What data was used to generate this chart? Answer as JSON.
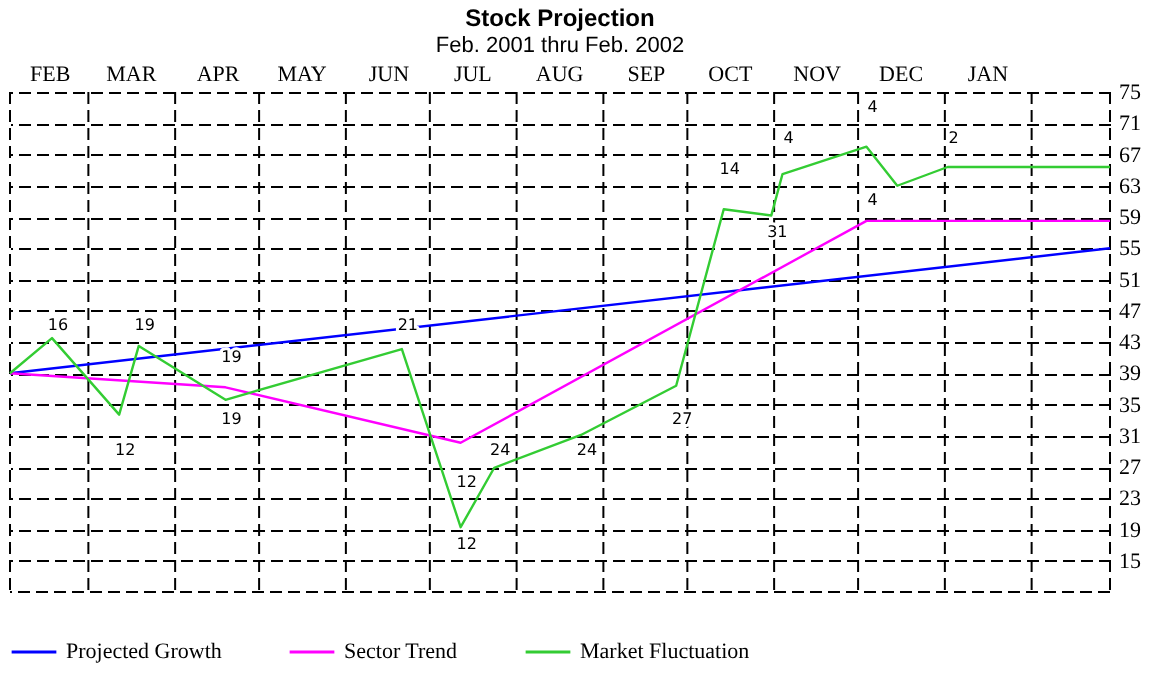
{
  "chart_data": {
    "type": "line",
    "title": "Stock Projection",
    "subtitle": "Feb. 2001 thru Feb. 2002",
    "xlim": [
      "2001-02-01",
      "2002-03-01"
    ],
    "xticks": [
      {
        "value": "2001-02-01",
        "label": null
      },
      {
        "value": "2001-02-15",
        "label": "FEB"
      },
      {
        "value": "2001-03-01",
        "label": null
      },
      {
        "value": "2001-03-16",
        "label": "MAR"
      },
      {
        "value": "2001-04-01",
        "label": null
      },
      {
        "value": "2001-04-16",
        "label": "APR"
      },
      {
        "value": "2001-05-01",
        "label": null
      },
      {
        "value": "2001-05-16",
        "label": "MAY"
      },
      {
        "value": "2001-06-01",
        "label": null
      },
      {
        "value": "2001-06-16",
        "label": "JUN"
      },
      {
        "value": "2001-07-01",
        "label": null
      },
      {
        "value": "2001-07-16",
        "label": "JUL"
      },
      {
        "value": "2001-08-01",
        "label": null
      },
      {
        "value": "2001-08-16",
        "label": "AUG"
      },
      {
        "value": "2001-09-01",
        "label": null
      },
      {
        "value": "2001-09-16",
        "label": "SEP"
      },
      {
        "value": "2001-10-01",
        "label": null
      },
      {
        "value": "2001-10-16",
        "label": "OCT"
      },
      {
        "value": "2001-11-01",
        "label": null
      },
      {
        "value": "2001-11-16",
        "label": "NOV"
      },
      {
        "value": "2001-12-01",
        "label": null
      },
      {
        "value": "2001-12-16",
        "label": "DEC"
      },
      {
        "value": "2002-01-01",
        "label": null
      },
      {
        "value": "2002-01-16",
        "label": "JAN"
      },
      {
        "value": "2002-02-01",
        "label": null
      },
      {
        "value": "2002-03-01",
        "label": null
      }
    ],
    "ylim": [
      11,
      75
    ],
    "yticks": [
      15,
      19,
      23,
      27,
      31,
      35,
      39,
      43,
      47,
      51,
      55,
      59,
      63,
      67,
      71,
      75
    ],
    "grid": true,
    "legend": "bottom",
    "line_style": "solid",
    "marker": "none",
    "series": [
      {
        "name": "Projected Growth",
        "color": "#0000ff",
        "x": [
          "2001-02-01",
          "2002-03-01"
        ],
        "values": [
          39,
          55
        ]
      },
      {
        "name": "Sector Trend",
        "color": "#ff00ff",
        "x": [
          "2001-02-01",
          "2001-04-19",
          "2001-07-12",
          "2001-12-04",
          "2002-03-01"
        ],
        "values": [
          39,
          37.2,
          30.1,
          58.5,
          58.5
        ]
      },
      {
        "name": "Market Fluctuation",
        "color": "#33cc33",
        "x": [
          "2001-02-01",
          "2001-02-16",
          "2001-03-12",
          "2001-03-19",
          "2001-04-19",
          "2001-06-21",
          "2001-07-12",
          "2001-07-24",
          "2001-08-24",
          "2001-09-27",
          "2001-10-14",
          "2001-10-31",
          "2001-11-04",
          "2001-12-04",
          "2001-12-15",
          "2002-01-02",
          "2002-03-01"
        ],
        "values": [
          39,
          43.5,
          33.7,
          42.5,
          35.6,
          42.1,
          19.3,
          26.9,
          31.1,
          37.4,
          60,
          59.2,
          64.5,
          68,
          63,
          65.4,
          65.4
        ]
      }
    ],
    "annotations": [
      {
        "text": "19",
        "x": "2001-04-19",
        "y": 37.2
      },
      {
        "text": "12",
        "x": "2001-07-12",
        "y": 30.1
      },
      {
        "text": "4",
        "x": "2001-12-04",
        "y": 58.5
      },
      {
        "text": "16",
        "x": "2001-02-16",
        "y": 43.5
      },
      {
        "text": "12",
        "x": "2001-03-12",
        "y": 33.7
      },
      {
        "text": "19",
        "x": "2001-03-19",
        "y": 42.5
      },
      {
        "text": "19",
        "x": "2001-04-19",
        "y": 35.6
      },
      {
        "text": "21",
        "x": "2001-06-21",
        "y": 42.1
      },
      {
        "text": "12",
        "x": "2001-07-12",
        "y": 19.3
      },
      {
        "text": "24",
        "x": "2001-07-24",
        "y": 26.9
      },
      {
        "text": "24",
        "x": "2001-08-24",
        "y": 31.1
      },
      {
        "text": "27",
        "x": "2001-09-27",
        "y": 37.4
      },
      {
        "text": "14",
        "x": "2001-10-14",
        "y": 60
      },
      {
        "text": "31",
        "x": "2001-10-31",
        "y": 59.2
      },
      {
        "text": "4",
        "x": "2001-11-04",
        "y": 64.5
      },
      {
        "text": "4",
        "x": "2001-12-04",
        "y": 68
      },
      {
        "text": "2",
        "x": "2002-01-02",
        "y": 65.4
      }
    ]
  }
}
